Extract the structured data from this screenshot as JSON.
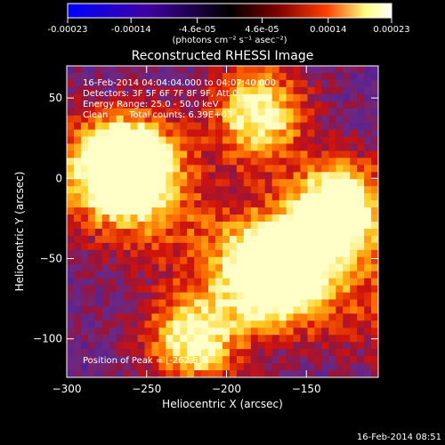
{
  "colorbar": {
    "ticks": [
      "-0.00023",
      "-0.00014",
      "-4.6e-05",
      "4.6e-05",
      "0.00014",
      "0.00023"
    ],
    "tick_values": [
      -0.00023,
      -0.00014,
      -4.6e-05,
      4.6e-05,
      0.00014,
      0.00023
    ],
    "range": [
      -0.00023,
      0.00023
    ],
    "units": "(photons cm⁻² s⁻¹ asec⁻²)",
    "colormap": [
      "#0000ff",
      "#4000a0",
      "#000000",
      "#800000",
      "#ff4000",
      "#ffff80",
      "#ffffff"
    ]
  },
  "chart_data": {
    "type": "heatmap",
    "title": "Reconstructed RHESSI Image",
    "xlabel": "Heliocentric X (arcsec)",
    "ylabel": "Heliocentric Y (arcsec)",
    "xlim": [
      -300,
      -105
    ],
    "ylim": [
      -124,
      70
    ],
    "xticks": [
      -300,
      -250,
      -200,
      -150
    ],
    "yticks": [
      -100,
      -50,
      0,
      50
    ],
    "peak_position": [
      -262,
      8
    ],
    "bright_sources": [
      {
        "x": -262,
        "y": 8,
        "level": "peak"
      },
      {
        "x": -130,
        "y": -20,
        "level": "high"
      },
      {
        "x": -170,
        "y": -60,
        "level": "high"
      },
      {
        "x": -180,
        "y": 40,
        "level": "medium"
      },
      {
        "x": -220,
        "y": -100,
        "level": "medium"
      }
    ]
  },
  "annotations": {
    "time_range": "16-Feb-2014 04:04:04.000 to 04:07:40.000",
    "detectors": "Detectors: 3F 5F 6F 7F 8F 9F, Att 0",
    "energy": "Energy Range: 25.0 - 50.0 keV",
    "method": "Clean",
    "counts": "Total counts: 6.39E+03",
    "peak_label": "Position of Peak = [-262,8]"
  },
  "footer": {
    "timestamp": "16-Feb-2014 08:51"
  }
}
